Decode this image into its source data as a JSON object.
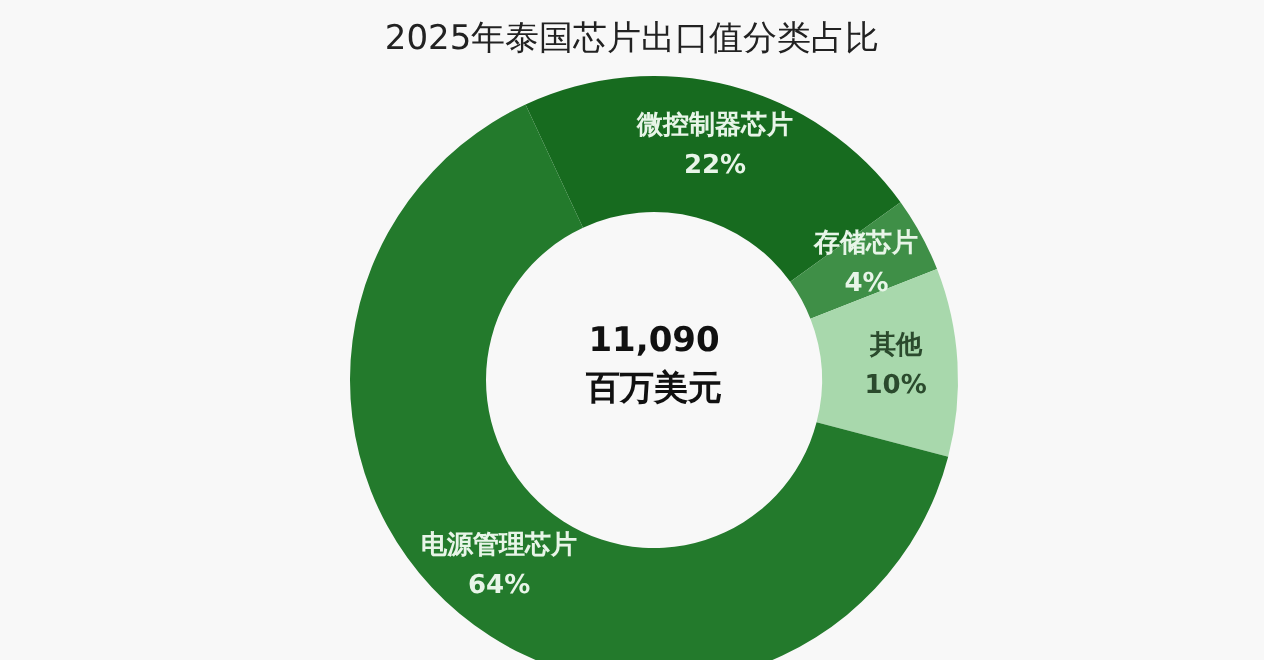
{
  "chart_data": {
    "type": "donut",
    "title": "2025年泰国芯片出口值分类占比",
    "categories": [
      "微控制器芯片",
      "存储芯片",
      "其他",
      "电源管理芯片"
    ],
    "values": [
      22,
      4,
      10,
      64
    ],
    "colors": [
      "#176b1f",
      "#3f8f47",
      "#a8d8ac",
      "#237a2c"
    ],
    "value_labels": [
      "22%",
      "4%",
      "10%",
      "64%"
    ],
    "annotations": [
      "11,090",
      "百万美元"
    ]
  }
}
